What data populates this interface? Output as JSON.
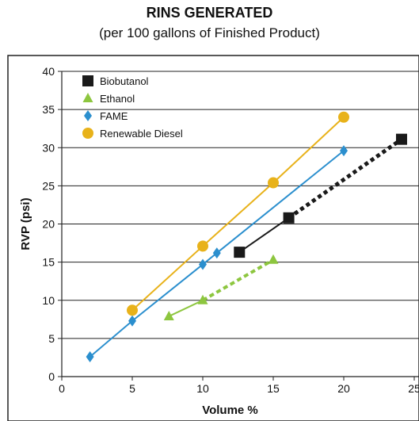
{
  "chart_data": {
    "type": "line",
    "title": "RINS GENERATED",
    "subtitle": "(per 100 gallons of Finished Product)",
    "xlabel": "Volume %",
    "ylabel": "RVP (psi)",
    "xlim": [
      0,
      25
    ],
    "ylim": [
      0,
      40
    ],
    "xticks": [
      0,
      5,
      10,
      15,
      20,
      25
    ],
    "yticks": [
      0,
      5,
      10,
      15,
      20,
      25,
      30,
      35,
      40
    ],
    "grid": "horizontal",
    "legend_position": "top-left",
    "series": [
      {
        "name": "Biobutanol",
        "color": "#1a1a1a",
        "marker": "square",
        "points": [
          [
            12.6,
            16.3
          ],
          [
            16.1,
            20.8
          ],
          [
            24.1,
            31.1
          ]
        ],
        "dashed_from_index": 1
      },
      {
        "name": "Ethanol",
        "color": "#8dc63f",
        "marker": "triangle",
        "points": [
          [
            7.6,
            7.9
          ],
          [
            10.0,
            10.0
          ],
          [
            15.0,
            15.3
          ]
        ],
        "dashed_from_index": 1
      },
      {
        "name": "FAME",
        "color": "#2b8fce",
        "marker": "diamond",
        "points": [
          [
            2.0,
            2.6
          ],
          [
            5.0,
            7.3
          ],
          [
            10.0,
            14.7
          ],
          [
            11.0,
            16.2
          ],
          [
            20.0,
            29.6
          ]
        ],
        "dashed_from_index": -1
      },
      {
        "name": "Renewable Diesel",
        "color": "#e8b21a",
        "marker": "circle",
        "points": [
          [
            5.0,
            8.7
          ],
          [
            10.0,
            17.1
          ],
          [
            15.0,
            25.4
          ],
          [
            20.0,
            34.0
          ]
        ],
        "dashed_from_index": -1
      }
    ]
  }
}
